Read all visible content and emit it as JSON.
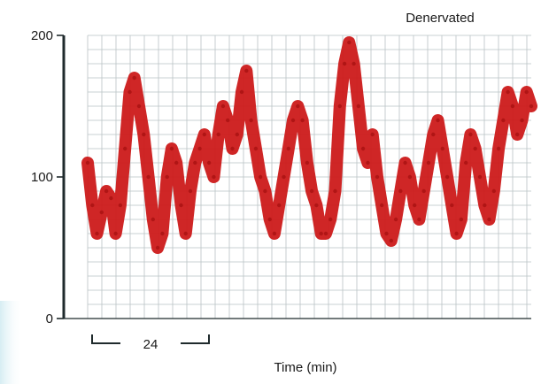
{
  "chart_data": {
    "type": "line",
    "title": "Denervated",
    "xlabel": "Time (min)",
    "ylabel": "",
    "ylim": [
      0,
      200
    ],
    "yticks": [
      0,
      100,
      200
    ],
    "xlim": [
      0,
      190
    ],
    "scale_bar": {
      "value": 24,
      "label": "24"
    },
    "grid": true,
    "series": [
      {
        "color": "#cc1a1a",
        "x": [
          0,
          2,
          4,
          6,
          8,
          10,
          12,
          14,
          16,
          18,
          20,
          22,
          24,
          26,
          28,
          30,
          32,
          34,
          36,
          38,
          40,
          42,
          44,
          46,
          48,
          50,
          52,
          54,
          56,
          58,
          60,
          62,
          64,
          66,
          68,
          70,
          72,
          74,
          76,
          78,
          80,
          82,
          84,
          86,
          88,
          90,
          92,
          94,
          96,
          98,
          100,
          102,
          104,
          106,
          108,
          110,
          112,
          114,
          116,
          118,
          120,
          122,
          124,
          126,
          128,
          130,
          132,
          134,
          136,
          138,
          140,
          142,
          144,
          146,
          148,
          150,
          152,
          154,
          156,
          158,
          160,
          162,
          164,
          166,
          168,
          170,
          172,
          174,
          176,
          178,
          180,
          182,
          184,
          186,
          188,
          190
        ],
        "y": [
          110,
          80,
          60,
          75,
          90,
          85,
          60,
          80,
          120,
          160,
          170,
          150,
          130,
          100,
          70,
          50,
          60,
          100,
          120,
          110,
          80,
          60,
          90,
          110,
          120,
          130,
          110,
          100,
          130,
          150,
          140,
          120,
          130,
          160,
          175,
          140,
          120,
          100,
          90,
          70,
          60,
          80,
          100,
          120,
          140,
          150,
          140,
          110,
          90,
          80,
          60,
          60,
          70,
          90,
          150,
          180,
          195,
          180,
          150,
          120,
          110,
          130,
          100,
          80,
          60,
          55,
          70,
          90,
          110,
          100,
          80,
          70,
          90,
          110,
          130,
          140,
          120,
          100,
          80,
          60,
          70,
          110,
          130,
          120,
          100,
          80,
          70,
          90,
          120,
          140,
          160,
          150,
          130,
          140,
          160,
          150
        ]
      }
    ]
  }
}
